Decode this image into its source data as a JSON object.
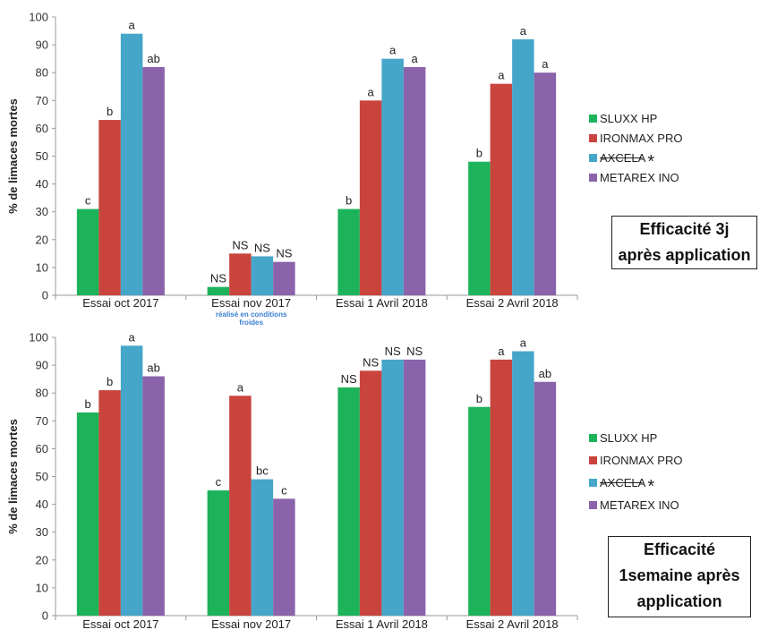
{
  "chart_data": [
    {
      "type": "bar",
      "ylabel": "% de limaces mortes",
      "ylim": [
        0,
        100
      ],
      "yticks": [
        0,
        10,
        20,
        30,
        40,
        50,
        60,
        70,
        80,
        90,
        100
      ],
      "grid": false,
      "categories": [
        "Essai oct 2017",
        "Essai nov 2017",
        "Essai 1 Avril 2018",
        "Essai 2 Avril 2018"
      ],
      "category_note": {
        "index": 1,
        "lines": [
          "réalisé en conditions",
          "froides"
        ]
      },
      "series": [
        {
          "name": "SLUXX HP",
          "values": [
            31,
            3,
            31,
            48
          ],
          "labels": [
            "c",
            "NS",
            "b",
            "b"
          ]
        },
        {
          "name": "IRONMAX PRO",
          "values": [
            63,
            15,
            70,
            76
          ],
          "labels": [
            "b",
            "NS",
            "a",
            "a"
          ]
        },
        {
          "name": "AXCELA",
          "values": [
            94,
            14,
            85,
            92
          ],
          "labels": [
            "a",
            "NS",
            "a",
            "a"
          ]
        },
        {
          "name": "METAREX INO",
          "values": [
            82,
            12,
            82,
            80
          ],
          "labels": [
            "ab",
            "NS",
            "a",
            "a"
          ]
        }
      ],
      "legend_position": "right",
      "legend_strike_series": "AXCELA",
      "legend_marker": "*",
      "caption_lines": [
        "Efficacité 3j",
        "après application"
      ]
    },
    {
      "type": "bar",
      "ylabel": "% de limaces mortes",
      "ylim": [
        0,
        100
      ],
      "yticks": [
        0,
        10,
        20,
        30,
        40,
        50,
        60,
        70,
        80,
        90,
        100
      ],
      "grid": false,
      "categories": [
        "Essai oct 2017",
        "Essai nov 2017",
        "Essai 1 Avril 2018",
        "Essai 2 Avril 2018"
      ],
      "series": [
        {
          "name": "SLUXX HP",
          "values": [
            73,
            45,
            82,
            75
          ],
          "labels": [
            "b",
            "c",
            "NS",
            "b"
          ]
        },
        {
          "name": "IRONMAX PRO",
          "values": [
            81,
            79,
            88,
            92
          ],
          "labels": [
            "b",
            "a",
            "NS",
            "a"
          ]
        },
        {
          "name": "AXCELA",
          "values": [
            97,
            49,
            92,
            95
          ],
          "labels": [
            "a",
            "bc",
            "NS",
            "a"
          ]
        },
        {
          "name": "METAREX INO",
          "values": [
            86,
            42,
            92,
            84
          ],
          "labels": [
            "ab",
            "c",
            "NS",
            "ab"
          ]
        }
      ],
      "legend_position": "right",
      "legend_strike_series": "AXCELA",
      "legend_marker": "*",
      "caption_lines": [
        "Efficacité",
        "1semaine après",
        "application"
      ]
    }
  ],
  "colors": [
    "#1db35a",
    "#c9443d",
    "#45a6c9",
    "#8a63ab"
  ]
}
